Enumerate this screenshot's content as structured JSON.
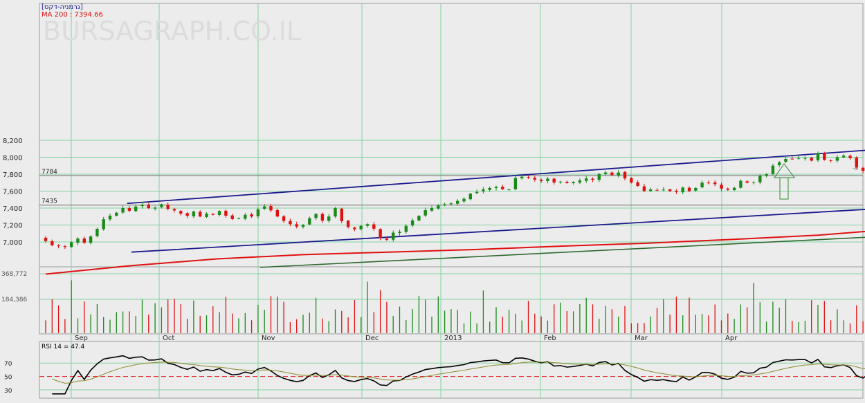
{
  "header": {
    "instrument": "[גרמניה-דקס]",
    "ma_legend": "MA 200 : 7394.66",
    "watermark": "BURSAGRAPH.CO.IL"
  },
  "rsi_legend": "RSI 14 = 47.4",
  "colors": {
    "up": "#1a8a1a",
    "down": "#e01010",
    "ma": "#e01010",
    "channel": "#1a1a8c",
    "trend": "#2e6b2e",
    "grid": "#7fd4a0",
    "background": "#ececec"
  },
  "chart_data": [
    {
      "type": "candlestick",
      "y_ticks": [
        "8,200",
        "8,000",
        "7,800",
        "7,600",
        "7,400",
        "7,200",
        "7,000"
      ],
      "ylim": [
        6840,
        8290
      ],
      "x_labels": [
        "Sep",
        "Oct",
        "Nov",
        "Dec",
        "2013",
        "Feb",
        "Mar",
        "Apr"
      ],
      "levels": [
        {
          "value": 7784,
          "label": "7784"
        },
        {
          "value": 7435,
          "label": "7435"
        }
      ],
      "channel_upper": [
        {
          "day": 38,
          "value": 7455
        },
        {
          "day": 480,
          "value": 8260
        }
      ],
      "channel_lower": [
        {
          "day": 40,
          "value": 6880
        },
        {
          "day": 474,
          "value": 7520
        }
      ],
      "trend_support": [
        {
          "day": 100,
          "value": 6700
        },
        {
          "day": 474,
          "value": 7170
        }
      ],
      "downtrend": [
        {
          "day": 420,
          "value": 8080
        },
        {
          "day": 486,
          "value": 7610
        }
      ],
      "downtrend_thin": [
        {
          "day": 420,
          "value": 8080
        },
        {
          "day": 480,
          "value": 7780
        }
      ],
      "ma200": [
        {
          "day": 0,
          "value": 6620
        },
        {
          "day": 40,
          "value": 6720
        },
        {
          "day": 80,
          "value": 6800
        },
        {
          "day": 120,
          "value": 6850
        },
        {
          "day": 160,
          "value": 6880
        },
        {
          "day": 200,
          "value": 6910
        },
        {
          "day": 240,
          "value": 6950
        },
        {
          "day": 280,
          "value": 6985
        },
        {
          "day": 320,
          "value": 7030
        },
        {
          "day": 360,
          "value": 7080
        },
        {
          "day": 400,
          "value": 7160
        },
        {
          "day": 430,
          "value": 7260
        },
        {
          "day": 450,
          "value": 7340
        },
        {
          "day": 466,
          "value": 7395
        }
      ],
      "closes": [
        7010,
        6960,
        6950,
        6940,
        6995,
        7040,
        6990,
        7065,
        7155,
        7268,
        7310,
        7345,
        7400,
        7368,
        7418,
        7440,
        7398,
        7405,
        7445,
        7390,
        7372,
        7335,
        7308,
        7360,
        7300,
        7335,
        7320,
        7365,
        7310,
        7270,
        7280,
        7320,
        7300,
        7385,
        7420,
        7372,
        7300,
        7248,
        7210,
        7182,
        7200,
        7280,
        7330,
        7250,
        7300,
        7400,
        7245,
        7176,
        7150,
        7190,
        7210,
        7156,
        7043,
        7025,
        7110,
        7120,
        7190,
        7255,
        7308,
        7375,
        7400,
        7430,
        7445,
        7455,
        7485,
        7510,
        7570,
        7590,
        7620,
        7638,
        7650,
        7622,
        7620,
        7756,
        7770,
        7758,
        7736,
        7720,
        7748,
        7702,
        7712,
        7696,
        7708,
        7727,
        7750,
        7735,
        7800,
        7820,
        7790,
        7820,
        7750,
        7700,
        7660,
        7600,
        7620,
        7610,
        7618,
        7600,
        7590,
        7642,
        7600,
        7638,
        7700,
        7700,
        7682,
        7630,
        7615,
        7640,
        7722,
        7700,
        7705,
        7780,
        7800,
        7901,
        7940,
        7980,
        7978,
        7990,
        7990,
        7960,
        8050,
        7970,
        7960,
        8000,
        8020,
        7990,
        7880,
        7840,
        7920,
        7830,
        7785,
        7900,
        7880,
        7880,
        7760,
        7810,
        7720,
        7640,
        7690,
        7760,
        7672,
        7560,
        7502,
        7462,
        7520,
        7490,
        7460,
        7520,
        7620,
        7750
      ]
    },
    {
      "type": "bar",
      "series_name": "Volume",
      "y_ticks": [
        "368,772",
        "184,386"
      ],
      "ylim": [
        0,
        368772
      ]
    },
    {
      "type": "line",
      "series_name": "RSI 14",
      "y_ticks": [
        "70",
        "50",
        "30"
      ],
      "ylim": [
        22,
        92
      ],
      "reference_line": 50,
      "last_value": 47.4
    }
  ]
}
